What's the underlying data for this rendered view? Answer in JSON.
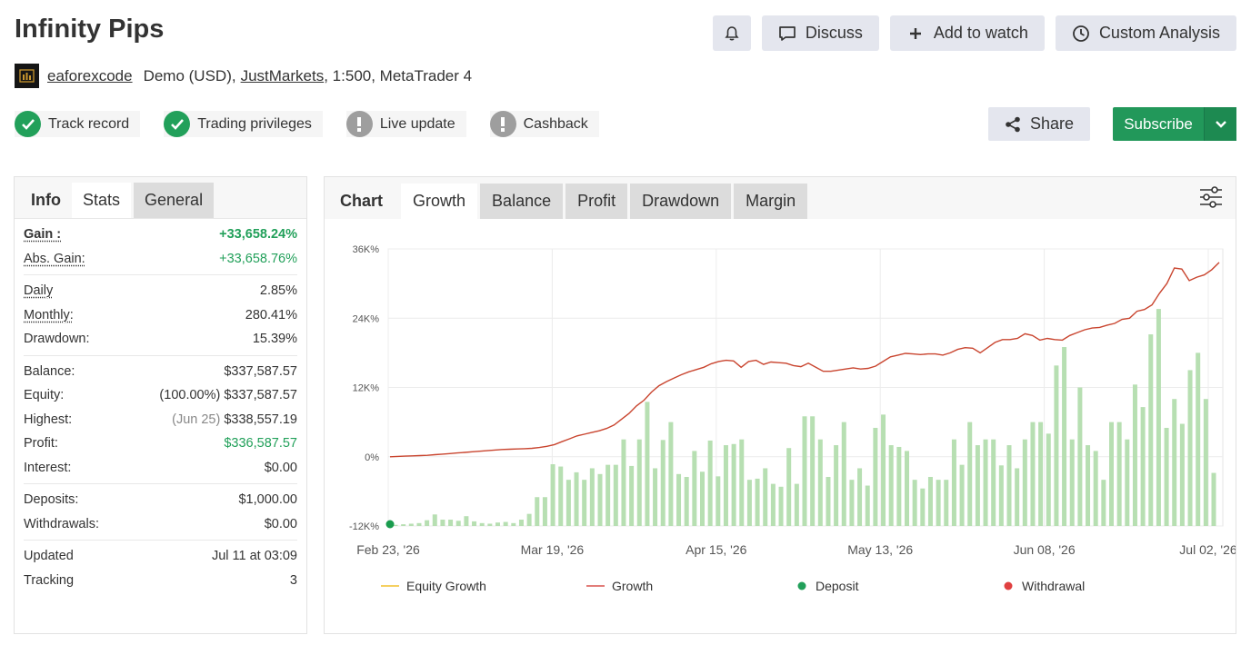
{
  "header": {
    "title": "Infinity Pips",
    "buttons": {
      "bell": "",
      "discuss": "Discuss",
      "add_to_watch": "Add to watch",
      "custom_analysis": "Custom Analysis"
    }
  },
  "account": {
    "owner": "eaforexcode",
    "type": "Demo (USD),",
    "broker": "JustMarkets",
    "details": ", 1:500, MetaTrader 4"
  },
  "badges": [
    {
      "label": "Track record",
      "status": "ok",
      "color": "#22a05a"
    },
    {
      "label": "Trading privileges",
      "status": "ok",
      "color": "#22a05a"
    },
    {
      "label": "Live update",
      "status": "warn",
      "color": "#9e9e9e"
    },
    {
      "label": "Cashback",
      "status": "warn",
      "color": "#9e9e9e"
    }
  ],
  "actions": {
    "share": "Share",
    "subscribe": "Subscribe"
  },
  "info": {
    "tabs": [
      "Info",
      "Stats",
      "General"
    ],
    "gain": {
      "label": "Gain :",
      "value": "+33,658.24%"
    },
    "abs_gain": {
      "label": "Abs. Gain:",
      "value": "+33,658.76%"
    },
    "daily": {
      "label": "Daily",
      "value": "2.85%"
    },
    "monthly": {
      "label": "Monthly:",
      "value": "280.41%"
    },
    "drawdown": {
      "label": "Drawdown:",
      "value": "15.39%"
    },
    "balance": {
      "label": "Balance:",
      "value": "$337,587.57"
    },
    "equity": {
      "label": "Equity:",
      "pct": "(100.00%)",
      "value": "$337,587.57"
    },
    "highest": {
      "label": "Highest:",
      "date": "(Jun 25)",
      "value": "$338,557.19"
    },
    "profit": {
      "label": "Profit:",
      "value": "$336,587.57"
    },
    "interest": {
      "label": "Interest:",
      "value": "$0.00"
    },
    "deposits": {
      "label": "Deposits:",
      "value": "$1,000.00"
    },
    "withdrawals": {
      "label": "Withdrawals:",
      "value": "$0.00"
    },
    "updated": {
      "label": "Updated",
      "value": "Jul 11 at 03:09"
    },
    "tracking": {
      "label": "Tracking",
      "value": "3"
    }
  },
  "chart_tabs": [
    "Chart",
    "Growth",
    "Balance",
    "Profit",
    "Drawdown",
    "Margin"
  ],
  "chart_data": {
    "type": "line",
    "y_ticks": [
      "36K%",
      "24K%",
      "12K%",
      "0%",
      "-12K%"
    ],
    "y_tick_values": [
      36000,
      24000,
      12000,
      0,
      -12000
    ],
    "ylim": [
      -12000,
      36000
    ],
    "x_ticks": [
      "Feb 23, '26",
      "Mar 19, '26",
      "Apr 15, '26",
      "May 13, '26",
      "Jun 08, '26",
      "Jul 02, '26"
    ],
    "legend": [
      "Equity Growth",
      "Growth",
      "Deposit",
      "Withdrawal"
    ],
    "legend_colors": [
      "#f2c12e",
      "#d9534f",
      "#22a05a",
      "#e04040"
    ],
    "grid": true,
    "growth_line": [
      0,
      50,
      100,
      150,
      200,
      250,
      350,
      450,
      550,
      650,
      750,
      850,
      950,
      1050,
      1150,
      1250,
      1300,
      1350,
      1400,
      1450,
      1600,
      1800,
      2100,
      2600,
      3100,
      3600,
      3900,
      4200,
      4500,
      4900,
      5500,
      6500,
      7500,
      8800,
      9800,
      11200,
      12300,
      13000,
      13600,
      14200,
      14700,
      15100,
      15500,
      16100,
      16500,
      16700,
      16600,
      15500,
      16500,
      16700,
      16000,
      16400,
      16300,
      16200,
      15800,
      15600,
      16200,
      15500,
      14800,
      14800,
      15000,
      15200,
      15400,
      15200,
      15300,
      15700,
      16500,
      17300,
      17600,
      17900,
      17800,
      17700,
      17800,
      17800,
      17600,
      18000,
      18600,
      18900,
      18800,
      18000,
      18900,
      19800,
      20300,
      20300,
      20500,
      21300,
      21000,
      20200,
      20500,
      20300,
      20200,
      21000,
      21500,
      22000,
      22300,
      22400,
      22800,
      23100,
      23800,
      24000,
      25200,
      25500,
      26300,
      28300,
      30000,
      32700,
      32500,
      30500,
      31100,
      31500,
      32400,
      33650
    ],
    "bars": [
      -11800,
      -11700,
      -11600,
      -11500,
      -11000,
      -10000,
      -10900,
      -10900,
      -11100,
      -10300,
      -11200,
      -11500,
      -11600,
      -11400,
      -11300,
      -11500,
      -10900,
      -9900,
      -7000,
      -7000,
      -1300,
      -1700,
      -4000,
      -2700,
      -4000,
      -2000,
      -3000,
      -1400,
      -1400,
      3000,
      -1600,
      3000,
      9500,
      -2000,
      2900,
      6000,
      -3000,
      -3500,
      1000,
      -2600,
      2800,
      -3400,
      2000,
      2200,
      3000,
      -4000,
      -3800,
      -2000,
      -4700,
      -5200,
      1500,
      -4700,
      7000,
      7000,
      3000,
      -3500,
      2000,
      6000,
      -4000,
      -2000,
      -5000,
      5000,
      7300,
      2000,
      1700,
      1000,
      -4000,
      -5500,
      -3500,
      -4000,
      -4000,
      3000,
      -1400,
      6000,
      2000,
      3000,
      3000,
      -1500,
      2000,
      -2000,
      3000,
      6000,
      6000,
      4000,
      15800,
      19000,
      3000,
      12000,
      2000,
      1000,
      -4000,
      6000,
      6000,
      3000,
      12500,
      8600,
      21200,
      25600,
      5000,
      10000,
      5700,
      15000,
      18000,
      10000,
      -2800
    ]
  }
}
